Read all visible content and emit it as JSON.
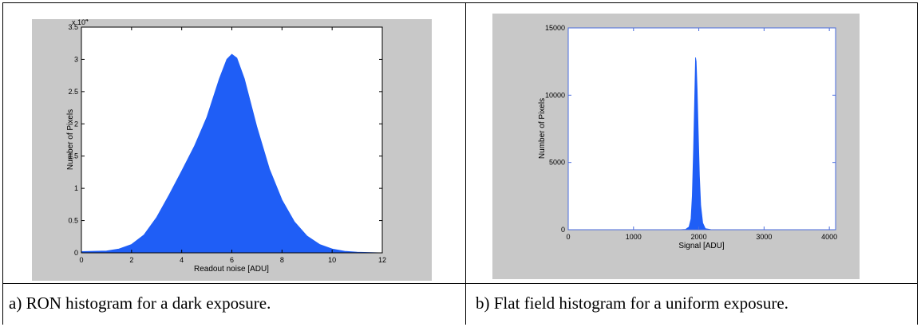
{
  "colors": {
    "fill": "#1f5ef6",
    "panel_bg": "#c8c8c8",
    "plot_bg": "#ffffff",
    "axis_a": "#000000",
    "axis_b": "#4a6bdc",
    "tail_green": "#3a9a3a"
  },
  "captions": {
    "a": "a) RON histogram for a dark exposure.",
    "b": "b) Flat field histogram for a uniform exposure."
  },
  "chart_data": [
    {
      "type": "area",
      "xlabel": "Readout noise [ADU]",
      "ylabel": "Number of Pixels",
      "xlim": [
        0,
        12
      ],
      "ylim": [
        0,
        35000
      ],
      "x_ticks": [
        0,
        2,
        4,
        6,
        8,
        10,
        12
      ],
      "y_ticks": [
        0,
        0.5,
        1,
        1.5,
        2,
        2.5,
        3,
        3.5
      ],
      "y_tick_labels": [
        "0",
        "0.5",
        "1",
        "1.5",
        "2",
        "2.5",
        "3",
        "3.5"
      ],
      "y_multiplier": "x 10",
      "y_multiplier_exp": "4",
      "series": [
        {
          "x": [
            0,
            1,
            1.5,
            2,
            2.5,
            3,
            3.5,
            4,
            4.5,
            5,
            5.5,
            5.8,
            6,
            6.2,
            6.5,
            7,
            7.5,
            8,
            8.5,
            9,
            9.5,
            10,
            10.5,
            11,
            12
          ],
          "values": [
            200,
            300,
            600,
            1300,
            2800,
            5500,
            9000,
            12700,
            16500,
            21000,
            27000,
            30000,
            30800,
            30200,
            27000,
            19500,
            13000,
            8200,
            4800,
            2600,
            1300,
            600,
            250,
            100,
            0
          ]
        }
      ]
    },
    {
      "type": "area",
      "xlabel": "Signal [ADU]",
      "ylabel": "Number of Pixels",
      "xlim": [
        0,
        4096
      ],
      "ylim": [
        0,
        15000
      ],
      "x_ticks": [
        0,
        1000,
        2000,
        3000,
        4000
      ],
      "y_ticks": [
        0,
        5000,
        10000,
        15000
      ],
      "series": [
        {
          "x": [
            1700,
            1800,
            1850,
            1880,
            1900,
            1920,
            1935,
            1950,
            1960,
            1975,
            1990,
            2010,
            2030,
            2060,
            2100,
            2200
          ],
          "values": [
            0,
            30,
            200,
            800,
            2500,
            6000,
            9500,
            12800,
            12500,
            10500,
            7500,
            4000,
            1800,
            500,
            80,
            0
          ]
        }
      ]
    }
  ]
}
